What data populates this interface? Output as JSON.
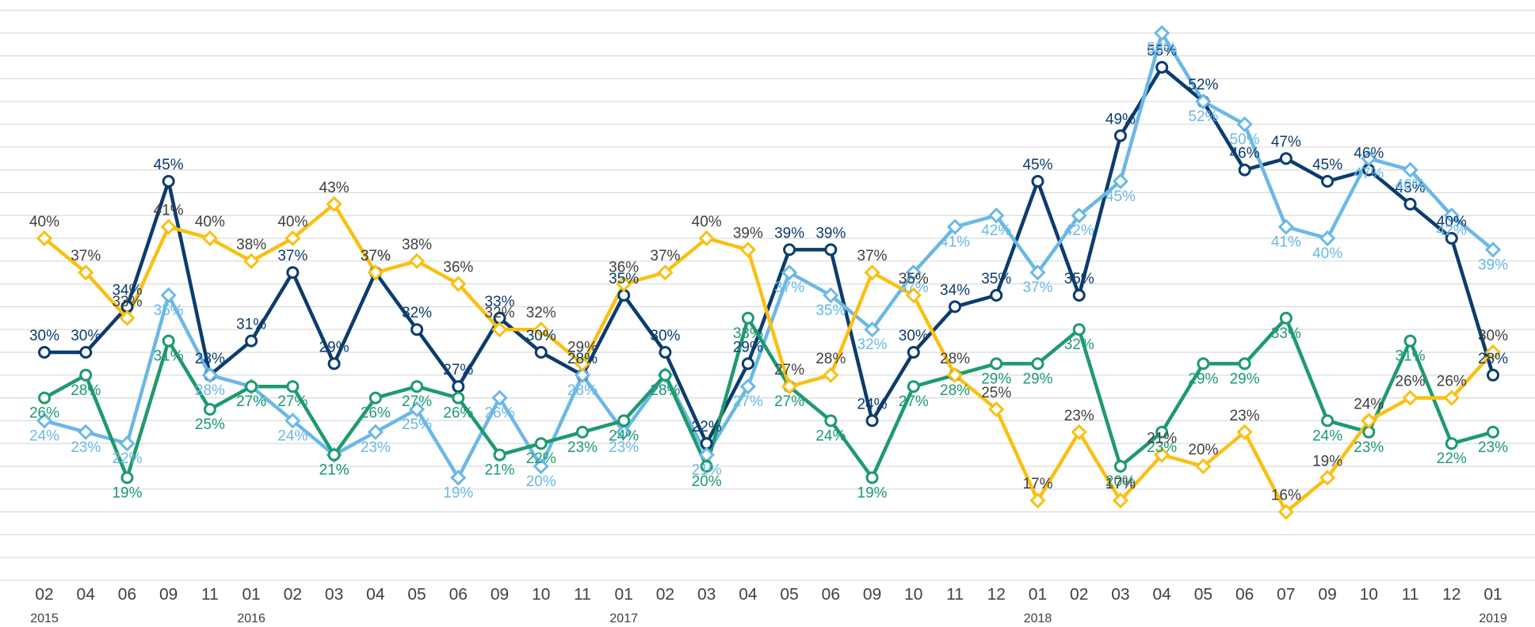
{
  "chart_data": {
    "type": "line",
    "categories": [
      "02",
      "04",
      "06",
      "09",
      "11",
      "01",
      "02",
      "03",
      "04",
      "05",
      "06",
      "09",
      "10",
      "11",
      "01",
      "02",
      "03",
      "04",
      "05",
      "06",
      "09",
      "10",
      "11",
      "12",
      "01",
      "02",
      "03",
      "04",
      "05",
      "06",
      "07",
      "09",
      "10",
      "11",
      "12",
      "01"
    ],
    "year_labels": [
      "2015",
      null,
      null,
      null,
      null,
      "2016",
      null,
      null,
      null,
      null,
      null,
      null,
      null,
      null,
      "2017",
      null,
      null,
      null,
      null,
      null,
      null,
      null,
      null,
      null,
      "2018",
      null,
      null,
      null,
      null,
      null,
      null,
      null,
      null,
      null,
      null,
      "2019"
    ],
    "ylim": [
      10,
      60
    ],
    "yticks": [
      10,
      12,
      14,
      16,
      18,
      20,
      22,
      24,
      26,
      28,
      30,
      32,
      34,
      36,
      38,
      40,
      42,
      44,
      46,
      48,
      50,
      52,
      54,
      56,
      58,
      60
    ],
    "grid": true,
    "series": [
      {
        "color": "#0b3c6e",
        "label_color": "#0b3c6e",
        "marker": "circle",
        "values": [
          30,
          30,
          34,
          45,
          28,
          31,
          37,
          29,
          37,
          32,
          27,
          33,
          30,
          28,
          35,
          30,
          22,
          29,
          39,
          39,
          24,
          30,
          34,
          35,
          45,
          35,
          49,
          55,
          52,
          46,
          47,
          45,
          46,
          43,
          40,
          28
        ],
        "value_labels": [
          "30%",
          "30%",
          "34%",
          "45%",
          "28%",
          "31%",
          "37%",
          "29%",
          "37%",
          "32%",
          "27%",
          "33%",
          "30%",
          "28%",
          "35%",
          "30%",
          "22%",
          "29%",
          "39%",
          "39%",
          "24%",
          "30%",
          "34%",
          "35%",
          "45%",
          "35%",
          "49%",
          "55%",
          "52%",
          "46%",
          "47%",
          "45%",
          "46%",
          "43%",
          "40%",
          "28%"
        ]
      },
      {
        "color": "#6bb8e6",
        "label_color": "#6bb8e6",
        "marker": "diamond",
        "values": [
          24,
          23,
          22,
          35,
          28,
          27,
          24,
          21,
          23,
          25,
          19,
          26,
          20,
          28,
          23,
          28,
          21,
          27,
          37,
          35,
          32,
          37,
          41,
          42,
          37,
          42,
          45,
          58,
          52,
          50,
          41,
          40,
          47,
          46,
          42,
          39
        ],
        "value_labels": [
          "24%",
          "23%",
          "22%",
          "35%",
          "28%",
          "27%",
          "24%",
          "21%",
          "23%",
          "25%",
          "19%",
          "26%",
          "20%",
          "28%",
          "23%",
          "28%",
          "21%",
          "27%",
          "37%",
          "35%",
          "32%",
          "37%",
          "41%",
          "42%",
          "37%",
          "42%",
          "45%",
          "58%",
          "52%",
          "50%",
          "41%",
          "40%",
          "47%",
          "46%",
          "42%",
          "39%"
        ]
      },
      {
        "color": "#1e9a6e",
        "label_color": "#1e9a6e",
        "marker": "circle",
        "values": [
          26,
          28,
          19,
          31,
          25,
          27,
          27,
          21,
          26,
          27,
          26,
          21,
          22,
          23,
          24,
          28,
          20,
          33,
          27,
          24,
          19,
          27,
          28,
          29,
          29,
          32,
          20,
          23,
          29,
          29,
          33,
          24,
          23,
          31,
          22,
          23
        ],
        "value_labels": [
          "26%",
          "28%",
          "19%",
          "31%",
          "25%",
          "27%",
          "27%",
          "21%",
          "26%",
          "27%",
          "26%",
          "21%",
          "22%",
          "23%",
          "24%",
          "28%",
          "20%",
          "33%",
          "27%",
          "24%",
          "19%",
          "27%",
          "28%",
          "29%",
          "29%",
          "32%",
          "20%",
          "23%",
          "29%",
          "29%",
          "33%",
          "24%",
          "23%",
          "31%",
          "22%",
          "23%"
        ]
      },
      {
        "color": "#f9c013",
        "label_color": "#404040",
        "marker": "diamond",
        "values": [
          40,
          37,
          33,
          41,
          40,
          38,
          40,
          43,
          37,
          38,
          36,
          32,
          32,
          29,
          36,
          37,
          40,
          39,
          27,
          28,
          37,
          35,
          28,
          25,
          17,
          23,
          17,
          21,
          20,
          23,
          16,
          19,
          24,
          26,
          26,
          30
        ],
        "value_labels": [
          "40%",
          "37%",
          "33%",
          "41%",
          "40%",
          "38%",
          "40%",
          "43%",
          "37%",
          "38%",
          "36%",
          "32%",
          "32%",
          "29%",
          "36%",
          "37%",
          "40%",
          "39%",
          "27%",
          "28%",
          "37%",
          "35%",
          "28%",
          "25%",
          "17%",
          "23%",
          "17%",
          "21%",
          "20%",
          "23%",
          "16%",
          "19%",
          "24%",
          "26%",
          "26%",
          "30%"
        ]
      }
    ]
  }
}
